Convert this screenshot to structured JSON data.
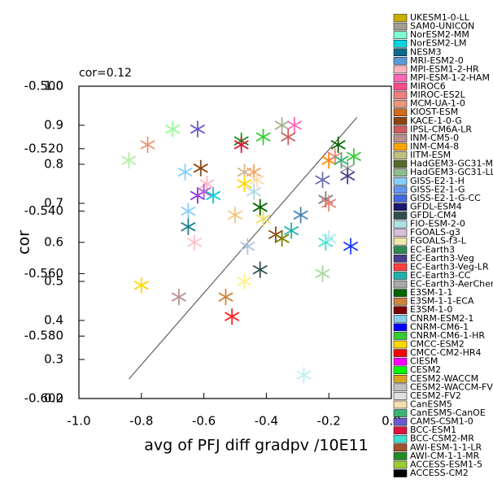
{
  "chart_data": {
    "type": "scatter",
    "annotation": "cor=0.12",
    "xlabel": "avg of PFJ diff gradpv /10E11",
    "ylabel": "cor",
    "xlim": [
      -1.0,
      0.0
    ],
    "xticks": [
      {
        "value": -1.0,
        "label": "-1.0"
      },
      -0.8,
      -0.6,
      -0.4,
      -0.2,
      {
        "value": 0.0,
        "label": "0.0"
      }
    ],
    "ylim": [
      0.2,
      1.0
    ],
    "yticks": [
      0.2,
      0.3,
      0.4,
      0.5,
      0.6,
      0.7,
      0.8,
      0.9,
      {
        "value": 1.0,
        "label": "1.0"
      }
    ],
    "y2lim": [
      -0.6,
      -0.5
    ],
    "y2ticks": [
      {
        "value": -0.6,
        "label": "-0.600"
      },
      {
        "value": -0.58,
        "label": "-0.580"
      },
      {
        "value": -0.56,
        "label": "-0.560"
      },
      {
        "value": -0.54,
        "label": "-0.540"
      },
      {
        "value": -0.52,
        "label": "-0.520"
      },
      {
        "value": -0.5,
        "label": "-0.500"
      }
    ],
    "points": {
      "x": [
        -0.7,
        -0.62,
        -0.78,
        -0.84,
        -0.48,
        -0.48,
        -0.41,
        -0.35,
        -0.31,
        -0.33,
        -0.61,
        -0.66,
        -0.47,
        -0.44,
        -0.43,
        -0.47,
        -0.44,
        -0.59,
        -0.62,
        -0.6,
        -0.57,
        -0.65,
        -0.65,
        -0.63,
        -0.5,
        -0.42,
        -0.41,
        -0.37,
        -0.35,
        -0.32,
        -0.29,
        -0.46,
        -0.42,
        -0.47,
        -0.21,
        -0.2,
        -0.13,
        -0.22,
        -0.17,
        -0.2,
        -0.18,
        -0.14,
        -0.12,
        -0.16,
        -0.22,
        -0.14,
        -0.21,
        -0.2,
        -0.8,
        -0.68,
        -0.53,
        -0.51,
        -0.28
      ],
      "y": [
        0.89,
        0.89,
        0.85,
        0.81,
        0.86,
        0.85,
        0.87,
        0.9,
        0.9,
        0.87,
        0.79,
        0.78,
        0.78,
        0.78,
        0.76,
        0.75,
        0.73,
        0.75,
        0.72,
        0.73,
        0.72,
        0.68,
        0.64,
        0.6,
        0.67,
        0.69,
        0.66,
        0.62,
        0.61,
        0.63,
        0.67,
        0.59,
        0.53,
        0.5,
        0.6,
        0.61,
        0.59,
        0.52,
        0.85,
        0.81,
        0.82,
        0.79,
        0.82,
        0.81,
        0.76,
        0.77,
        0.71,
        0.7,
        0.49,
        0.46,
        0.46,
        0.41,
        0.26
      ],
      "colors": [
        "#98fb98",
        "#6a5acd",
        "#e9967a",
        "#b4f0a0",
        "#228b22",
        "#dc143c",
        "#32cd32",
        "#a0b090",
        "#ff69b4",
        "#cd5c5c",
        "#8b4513",
        "#87cefa",
        "#d2b48c",
        "#f4a460",
        "#ffdead",
        "#ffd700",
        "#add8e6",
        "#ffb6c1",
        "#8a2be2",
        "#ba55d3",
        "#00ced1",
        "#87cefa",
        "#20808a",
        "#ffc0cb",
        "#f5c67a",
        "#006400",
        "#eedc60",
        "#8b4513",
        "#808000",
        "#20b2aa",
        "#4682b4",
        "#b0c4de",
        "#2f4f4f",
        "#fff08a",
        "#40e0d0",
        "#afeeee",
        "#1e3cff",
        "#a8d8a0",
        "#006400",
        "#ff8c00",
        "#fa8072",
        "#a9a9a9",
        "#32cd32",
        "#3cb371",
        "#7070b0",
        "#483d8b",
        "#808080",
        "#f08070",
        "#ffd700",
        "#bc8f8f",
        "#cd853f",
        "#ff2020",
        "#bfeff5"
      ]
    },
    "fit_line": {
      "x": [
        -0.84,
        -0.11
      ],
      "y": [
        0.25,
        0.92
      ],
      "color": "#606060"
    },
    "legend": [
      {
        "name": "UKESM1-0-LL",
        "color": "#c9b000"
      },
      {
        "name": "SAM0-UNICON",
        "color": "#a0a090"
      },
      {
        "name": "NorESM2-MM",
        "color": "#7fffd4"
      },
      {
        "name": "NorESM2-LM",
        "color": "#00d5e0"
      },
      {
        "name": "NESM3",
        "color": "#0e6a8a"
      },
      {
        "name": "MRI-ESM2-0",
        "color": "#5b9bd5"
      },
      {
        "name": "MPI-ESM1-2-HR",
        "color": "#ffb6c1"
      },
      {
        "name": "MPI-ESM-1-2-HAM",
        "color": "#ff69b4"
      },
      {
        "name": "MIROC6",
        "color": "#ff4d8a"
      },
      {
        "name": "MIROC-ES2L",
        "color": "#f08080"
      },
      {
        "name": "MCM-UA-1-0",
        "color": "#e9967a"
      },
      {
        "name": "KIOST-ESM",
        "color": "#d2691e"
      },
      {
        "name": "KACE-1-0-G",
        "color": "#8b4513"
      },
      {
        "name": "IPSL-CM6A-LR",
        "color": "#cd5c5c"
      },
      {
        "name": "INM-CM5-0",
        "color": "#bc8f8f"
      },
      {
        "name": "INM-CM4-8",
        "color": "#ffa500"
      },
      {
        "name": "IITM-ESM",
        "color": "#c0c080"
      },
      {
        "name": "HadGEM3-GC31-MM",
        "color": "#556b2f"
      },
      {
        "name": "HadGEM3-GC31-LL",
        "color": "#8fbc8f"
      },
      {
        "name": "GISS-E2-1-H",
        "color": "#87cefa"
      },
      {
        "name": "GISS-E2-1-G",
        "color": "#6495ed"
      },
      {
        "name": "GISS-E2-1-G-CC",
        "color": "#4169e1"
      },
      {
        "name": "GFDL-ESM4",
        "color": "#191970"
      },
      {
        "name": "GFDL-CM4",
        "color": "#2f4f4f"
      },
      {
        "name": "FIO-ESM-2-0",
        "color": "#b0e0e6"
      },
      {
        "name": "FGOALS-g3",
        "color": "#d8bfd8"
      },
      {
        "name": "FGOALS-f3-L",
        "color": "#eee8aa"
      },
      {
        "name": "EC-Earth3",
        "color": "#2e8b57"
      },
      {
        "name": "EC-Earth3-Veg",
        "color": "#483d8b"
      },
      {
        "name": "EC-Earth3-Veg-LR",
        "color": "#ff4040"
      },
      {
        "name": "EC-Earth3-CC",
        "color": "#20b2aa"
      },
      {
        "name": "EC-Earth3-AerChem",
        "color": "#a9a9a9"
      },
      {
        "name": "E3SM-1-1",
        "color": "#006400"
      },
      {
        "name": "E3SM-1-1-ECA",
        "color": "#cd853f"
      },
      {
        "name": "E3SM-1-0",
        "color": "#800000"
      },
      {
        "name": "CNRM-ESM2-1",
        "color": "#87ceeb"
      },
      {
        "name": "CNRM-CM6-1",
        "color": "#0000ff"
      },
      {
        "name": "CNRM-CM6-1-HR",
        "color": "#32cd32"
      },
      {
        "name": "CMCC-ESM2",
        "color": "#ffd700"
      },
      {
        "name": "CMCC-CM2-HR4",
        "color": "#ff0000"
      },
      {
        "name": "CIESM",
        "color": "#ff00ff"
      },
      {
        "name": "CESM2",
        "color": "#00ff00"
      },
      {
        "name": "CESM2-WACCM",
        "color": "#daa520"
      },
      {
        "name": "CESM2-WACCM-FV2",
        "color": "#c0c0c0"
      },
      {
        "name": "CESM2-FV2",
        "color": "#e0e0e0"
      },
      {
        "name": "CanESM5",
        "color": "#f5deb3"
      },
      {
        "name": "CanESM5-CanOE",
        "color": "#3cb371"
      },
      {
        "name": "CAMS-CSM1-0",
        "color": "#6a5acd"
      },
      {
        "name": "BCC-ESM1",
        "color": "#dc143c"
      },
      {
        "name": "BCC-CSM2-MR",
        "color": "#40e0d0"
      },
      {
        "name": "AWI-ESM-1-1-LR",
        "color": "#a0522d"
      },
      {
        "name": "AWI-CM-1-1-MR",
        "color": "#228b22"
      },
      {
        "name": "ACCESS-ESM1-5",
        "color": "#9acd32"
      },
      {
        "name": "ACCESS-CM2",
        "color": "#000000"
      }
    ]
  }
}
